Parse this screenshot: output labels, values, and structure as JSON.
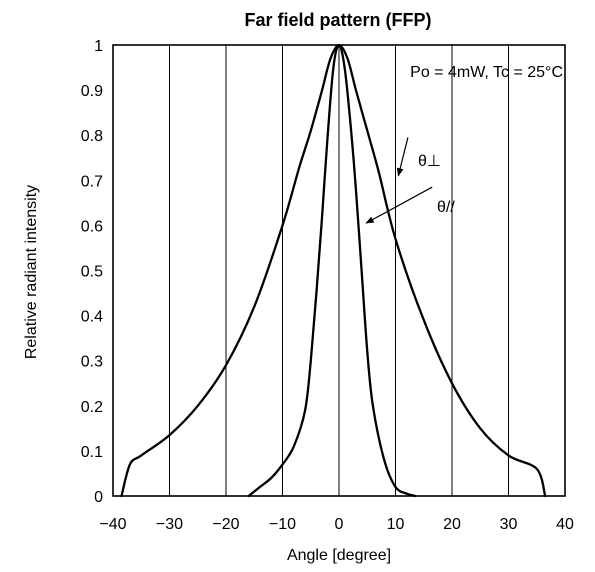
{
  "chart_data": {
    "type": "line",
    "title": "Far field pattern (FFP)",
    "xlabel": "Angle [degree]",
    "ylabel": "Relative radiant intensity",
    "xlim": [
      -40,
      40
    ],
    "ylim": [
      0,
      1
    ],
    "xticks": [
      -40,
      -30,
      -20,
      -10,
      0,
      10,
      20,
      30,
      40
    ],
    "xtick_labels": [
      "−40",
      "−30",
      "−20",
      "−10",
      "0",
      "10",
      "20",
      "30",
      "40"
    ],
    "yticks": [
      0,
      0.1,
      0.2,
      0.3,
      0.4,
      0.5,
      0.6,
      0.7,
      0.8,
      0.9,
      1
    ],
    "ytick_labels": [
      "0",
      "0.1",
      "0.2",
      "0.3",
      "0.4",
      "0.5",
      "0.6",
      "0.7",
      "0.8",
      "0.9",
      "1"
    ],
    "grid": "vertical",
    "condition_text": "Po = 4mW, Tc = 25°C",
    "series": [
      {
        "name": "θ⊥",
        "x": [
          -38.5,
          -37,
          -35,
          -30,
          -25,
          -20,
          -15,
          -10,
          -7,
          -5,
          -3,
          -1.5,
          0,
          1.5,
          3,
          5,
          7,
          10,
          15,
          20,
          25,
          30,
          35,
          36.5
        ],
        "y": [
          0.0,
          0.07,
          0.09,
          0.135,
          0.2,
          0.29,
          0.42,
          0.6,
          0.73,
          0.81,
          0.9,
          0.97,
          1.0,
          0.97,
          0.9,
          0.81,
          0.72,
          0.57,
          0.39,
          0.25,
          0.15,
          0.09,
          0.06,
          0.0
        ]
      },
      {
        "name": "θ//",
        "x": [
          -16,
          -14,
          -12,
          -10,
          -8,
          -6,
          -5,
          -4,
          -3,
          -2,
          -1,
          0,
          1,
          2,
          3,
          4,
          5,
          6,
          8,
          10,
          12,
          13.5
        ],
        "y": [
          0.0,
          0.02,
          0.04,
          0.07,
          0.11,
          0.19,
          0.3,
          0.45,
          0.62,
          0.8,
          0.95,
          1.0,
          0.95,
          0.83,
          0.68,
          0.5,
          0.32,
          0.2,
          0.08,
          0.02,
          0.005,
          0.0
        ]
      }
    ]
  }
}
